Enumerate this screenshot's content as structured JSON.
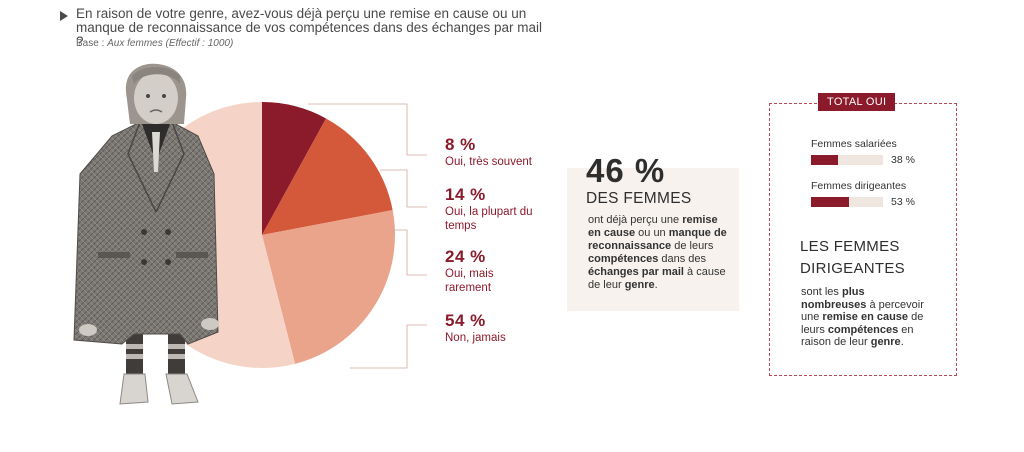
{
  "header": {
    "question": "En raison de votre genre, avez-vous déjà perçu une remise en cause ou un manque de reconnaissance de vos compétences dans des échanges par mail ?",
    "base_prefix": "Base : ",
    "base_value": "Aux femmes (Effectif : 1000)"
  },
  "chart_data": {
    "type": "pie",
    "title": "",
    "slices": [
      {
        "label_pct": "8 %",
        "label": "Oui, très souvent",
        "value": 8,
        "color": "#8b1a2b"
      },
      {
        "label_pct": "14 %",
        "label": "Oui, la plupart du temps",
        "value": 14,
        "color": "#d4593a"
      },
      {
        "label_pct": "24 %",
        "label": "Oui, mais rarement",
        "value": 24,
        "color": "#eaa48b"
      },
      {
        "label_pct": "54 %",
        "label": "Non, jamais",
        "value": 54,
        "color": "#f5d4c7"
      }
    ]
  },
  "labels": {
    "s0_pct": "8 %",
    "s0_l1": "Oui, très souvent",
    "s1_pct": "14 %",
    "s1_l1": "Oui, la plupart du",
    "s1_l2": "temps",
    "s2_pct": "24 %",
    "s2_l1": "Oui, mais",
    "s2_l2": "rarement",
    "s3_pct": "54 %",
    "s3_l1": "Non, jamais"
  },
  "summary": {
    "big_pct": "46 %",
    "title": "DES FEMMES",
    "t1": "ont déjà perçu une ",
    "b1": "remise en cause",
    "t2": " ou un ",
    "b2": "manque de reconnaissance",
    "t3": " de leurs ",
    "b3": "compétences",
    "t4": " dans des ",
    "b4": "échanges par mail",
    "t5": " à cause de leur ",
    "b5": "genre",
    "t6": "."
  },
  "total": {
    "tag": "TOTAL OUI",
    "bars": [
      {
        "label": "Femmes salariées",
        "value": 38,
        "display": "38 %"
      },
      {
        "label": "Femmes dirigeantes",
        "value": 53,
        "display": "53 %"
      }
    ],
    "title_l1": "LES FEMMES",
    "title_l2": "DIRIGEANTES",
    "t1": "sont les ",
    "b1": "plus nombreuses",
    "t2": " à percevoir une ",
    "b2": "remise en cause",
    "t3": " de leurs ",
    "b3": "compétences",
    "t4": " en raison de leur ",
    "b4": "genre",
    "t5": "."
  },
  "colors": {
    "accent": "#8b1a2b",
    "text": "#3d3d3d",
    "panel": "#f7f2ee",
    "track": "#efe7df"
  }
}
